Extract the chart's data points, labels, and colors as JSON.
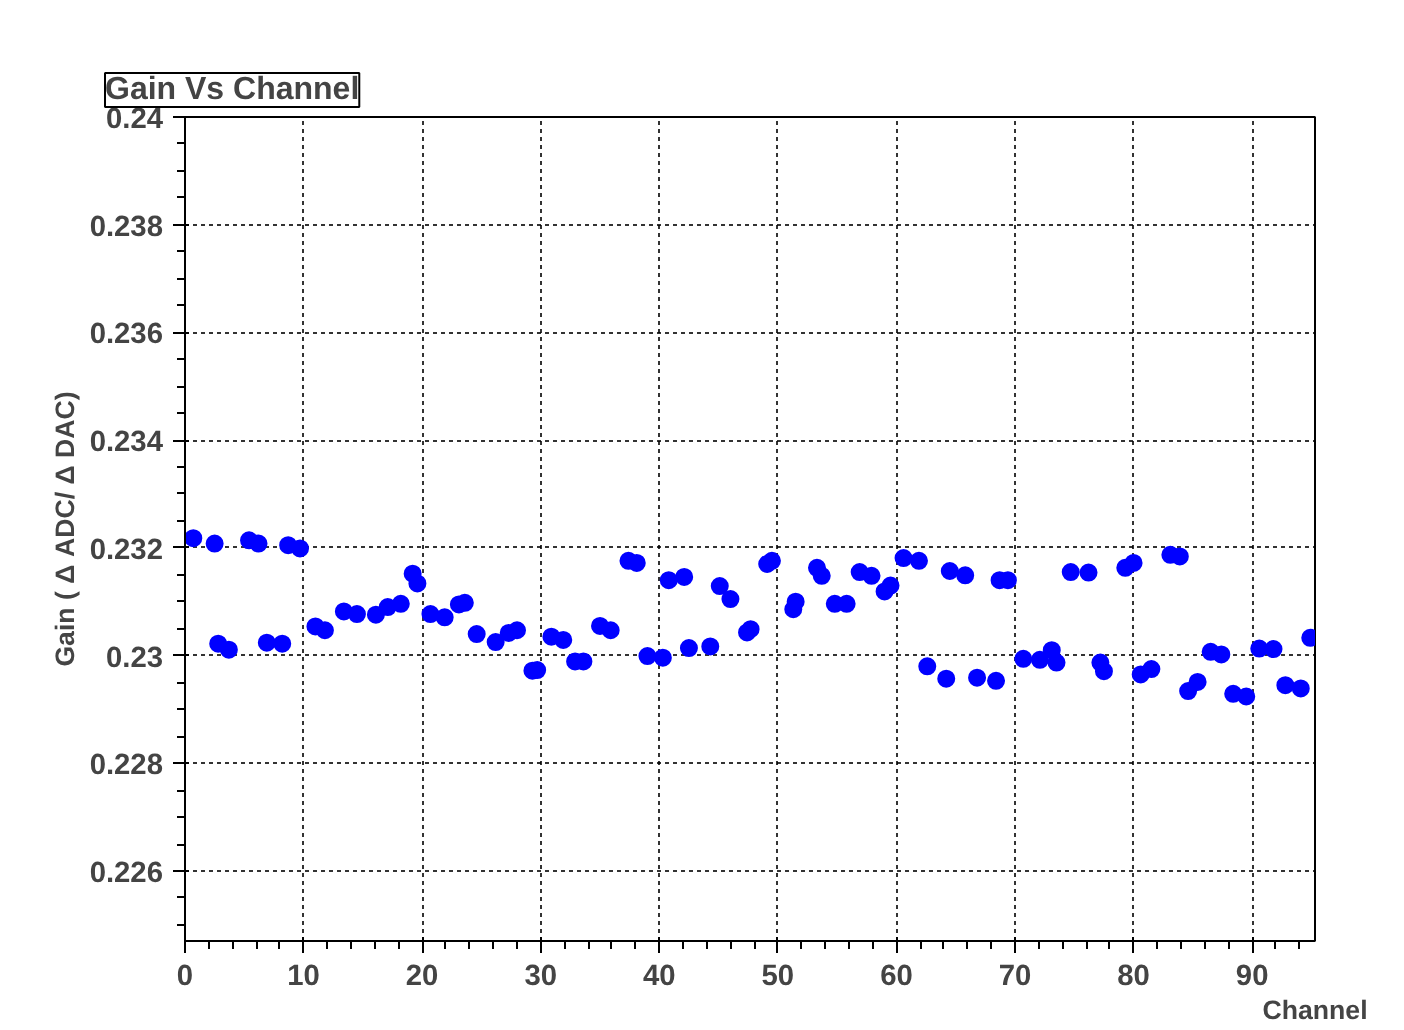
{
  "chart_data": {
    "type": "scatter",
    "title": "Gain Vs Channel",
    "xlabel": "Channel",
    "ylabel": "Gain ( Δ ADC/ Δ DAC)",
    "x": [
      0.7,
      2.5,
      2.8,
      3.7,
      5.4,
      6.2,
      6.9,
      8.2,
      8.7,
      9.7,
      11.0,
      11.8,
      13.4,
      14.5,
      16.1,
      17.1,
      18.2,
      19.2,
      19.6,
      20.7,
      21.9,
      23.1,
      23.6,
      24.6,
      26.2,
      27.3,
      28.0,
      29.3,
      29.7,
      30.9,
      31.9,
      32.9,
      33.6,
      35.0,
      35.9,
      37.4,
      38.1,
      39.0,
      40.3,
      40.8,
      42.1,
      42.5,
      44.3,
      45.1,
      46.0,
      47.4,
      47.7,
      49.1,
      49.5,
      51.3,
      51.5,
      53.3,
      53.7,
      54.8,
      55.8,
      56.9,
      57.9,
      59.0,
      59.5,
      60.6,
      61.9,
      62.6,
      64.2,
      64.5,
      65.8,
      66.8,
      68.4,
      68.7,
      69.4,
      70.7,
      72.1,
      73.1,
      73.5,
      74.7,
      76.2,
      77.2,
      77.5,
      79.3,
      80.0,
      80.6,
      81.5,
      83.1,
      83.9,
      84.6,
      85.4,
      86.5,
      87.4,
      88.4,
      89.5,
      90.6,
      91.8,
      92.8,
      94.1,
      94.9
    ],
    "series": [
      {
        "color": "#0000ff",
        "values": [
          0.23218,
          0.23208,
          0.23022,
          0.23011,
          0.23214,
          0.23208,
          0.23024,
          0.23022,
          0.23205,
          0.23199,
          0.23054,
          0.23047,
          0.23082,
          0.23077,
          0.23076,
          0.2309,
          0.23096,
          0.23152,
          0.23134,
          0.23077,
          0.23071,
          0.23095,
          0.23098,
          0.2304,
          0.23025,
          0.23042,
          0.23047,
          0.22972,
          0.22973,
          0.23035,
          0.23029,
          0.22989,
          0.22989,
          0.23055,
          0.23047,
          0.23176,
          0.23172,
          0.22999,
          0.22996,
          0.2314,
          0.23146,
          0.23014,
          0.23017,
          0.23129,
          0.23105,
          0.23043,
          0.23049,
          0.2317,
          0.23176,
          0.23086,
          0.231,
          0.23163,
          0.23148,
          0.23096,
          0.23096,
          0.23155,
          0.23148,
          0.23119,
          0.2313,
          0.23181,
          0.23176,
          0.2298,
          0.22957,
          0.23157,
          0.23149,
          0.22959,
          0.22953,
          0.2314,
          0.2314,
          0.22994,
          0.22992,
          0.2301,
          0.22987,
          0.23155,
          0.23154,
          0.22987,
          0.22971,
          0.23163,
          0.23172,
          0.22965,
          0.22975,
          0.23187,
          0.23184,
          0.22934,
          0.22951,
          0.23007,
          0.23002,
          0.22929,
          0.22924,
          0.23013,
          0.23012,
          0.22945,
          0.22939,
          0.23033
        ]
      }
    ],
    "xlim": [
      0,
      95.3
    ],
    "ylim": [
      0.2247,
      0.24
    ],
    "xticks": [
      0,
      10,
      20,
      30,
      40,
      50,
      60,
      70,
      80,
      90
    ],
    "yticks": [
      {
        "value": 0.226,
        "label": "0.226"
      },
      {
        "value": 0.228,
        "label": "0.228"
      },
      {
        "value": 0.23,
        "label": "0.23"
      },
      {
        "value": 0.232,
        "label": "0.232"
      },
      {
        "value": 0.234,
        "label": "0.234"
      },
      {
        "value": 0.236,
        "label": "0.236"
      },
      {
        "value": 0.238,
        "label": "0.238"
      },
      {
        "value": 0.24,
        "label": "0.24"
      }
    ],
    "grid": true,
    "marker": "circle"
  }
}
